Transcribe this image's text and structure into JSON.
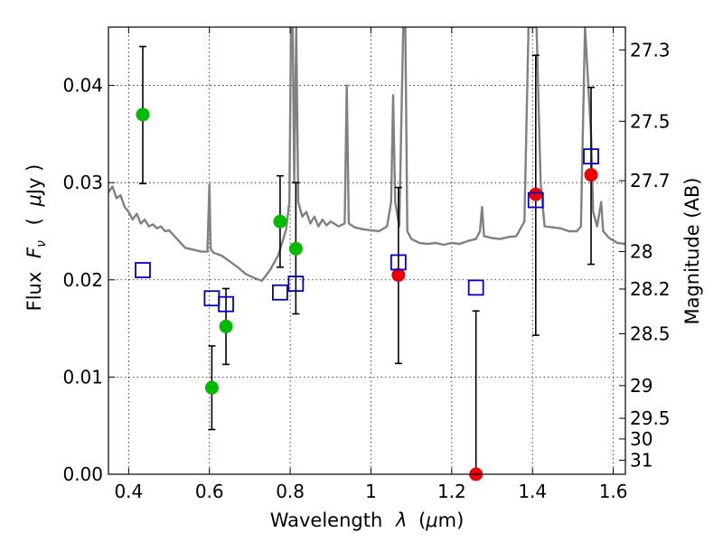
{
  "chart_data": {
    "type": "scatter",
    "xlabel_text": "Wavelength",
    "xlabel_symbol": "λ",
    "xlabel_unit_open": "(",
    "xlabel_unit_mu": "μ",
    "xlabel_unit_rest": "m)",
    "ylabel_text": "Flux",
    "ylabel_symbol": "F",
    "ylabel_sub": "ν",
    "ylabel_unit_open": "(",
    "ylabel_unit_mu": "μ",
    "ylabel_unit_rest": "Jy )",
    "y2label": "Magnitude (AB)",
    "xlim": [
      0.35,
      1.63
    ],
    "ylim": [
      0.0,
      0.046
    ],
    "x_ticks": [
      0.4,
      0.6,
      0.8,
      1.0,
      1.2,
      1.4,
      1.6
    ],
    "x_tick_labels": [
      "0.4",
      "0.6",
      "0.8",
      "1",
      "1.2",
      "1.4",
      "1.6"
    ],
    "y_ticks": [
      0.0,
      0.01,
      0.02,
      0.03,
      0.04
    ],
    "y_tick_labels": [
      "0.00",
      "0.01",
      "0.02",
      "0.03",
      "0.04"
    ],
    "mag_ticks": [
      27.3,
      27.5,
      27.7,
      28,
      28.2,
      28.5,
      29,
      29.5,
      30,
      31
    ],
    "mag_tick_labels": [
      "27.3",
      "27.5",
      "27.7",
      "28",
      "28.2",
      "28.5",
      "29",
      "29.5",
      "30",
      "31"
    ],
    "grid": true,
    "colors": {
      "spectrum": "#808080",
      "green": "#00bb00",
      "red": "#ee0000",
      "blue": "#0000cc",
      "errorbar": "#000000"
    },
    "series": [
      {
        "name": "green_points",
        "marker": "circle",
        "points": [
          {
            "x": 0.435,
            "y": 0.037,
            "yerr_low": 0.0299,
            "yerr_high": 0.044
          },
          {
            "x": 0.606,
            "y": 0.0089,
            "yerr_low": 0.0046,
            "yerr_high": 0.0132
          },
          {
            "x": 0.641,
            "y": 0.0152,
            "yerr_low": 0.0113,
            "yerr_high": 0.0191
          },
          {
            "x": 0.775,
            "y": 0.026,
            "yerr_low": 0.0213,
            "yerr_high": 0.0307
          },
          {
            "x": 0.814,
            "y": 0.0232,
            "yerr_low": 0.0165,
            "yerr_high": 0.03
          }
        ]
      },
      {
        "name": "red_points",
        "marker": "circle",
        "points": [
          {
            "x": 1.068,
            "y": 0.0205,
            "yerr_low": 0.0114,
            "yerr_high": 0.0295
          },
          {
            "x": 1.26,
            "y": 0.0,
            "yerr_low": 0.0,
            "yerr_high": 0.0168
          },
          {
            "x": 1.408,
            "y": 0.0288,
            "yerr_low": 0.0143,
            "yerr_high": 0.0431
          },
          {
            "x": 1.545,
            "y": 0.0308,
            "yerr_low": 0.0216,
            "yerr_high": 0.0398
          }
        ]
      },
      {
        "name": "model_squares",
        "marker": "square",
        "points": [
          {
            "x": 0.435,
            "y": 0.021
          },
          {
            "x": 0.606,
            "y": 0.0181
          },
          {
            "x": 0.641,
            "y": 0.0175
          },
          {
            "x": 0.775,
            "y": 0.0187
          },
          {
            "x": 0.814,
            "y": 0.0196
          },
          {
            "x": 1.068,
            "y": 0.0218
          },
          {
            "x": 1.26,
            "y": 0.0192
          },
          {
            "x": 1.408,
            "y": 0.0282
          },
          {
            "x": 1.545,
            "y": 0.0327
          }
        ]
      },
      {
        "name": "spectrum",
        "type": "line",
        "points": [
          [
            0.35,
            0.029
          ],
          [
            0.36,
            0.0296
          ],
          [
            0.37,
            0.0284
          ],
          [
            0.38,
            0.0287
          ],
          [
            0.39,
            0.0275
          ],
          [
            0.4,
            0.027
          ],
          [
            0.41,
            0.0262
          ],
          [
            0.42,
            0.0268
          ],
          [
            0.43,
            0.0258
          ],
          [
            0.44,
            0.0262
          ],
          [
            0.45,
            0.0255
          ],
          [
            0.46,
            0.0257
          ],
          [
            0.47,
            0.0253
          ],
          [
            0.48,
            0.0255
          ],
          [
            0.49,
            0.025
          ],
          [
            0.5,
            0.0251
          ],
          [
            0.52,
            0.0242
          ],
          [
            0.54,
            0.0233
          ],
          [
            0.56,
            0.0231
          ],
          [
            0.58,
            0.0229
          ],
          [
            0.595,
            0.0229
          ],
          [
            0.6,
            0.0298
          ],
          [
            0.603,
            0.0232
          ],
          [
            0.61,
            0.0228
          ],
          [
            0.63,
            0.0225
          ],
          [
            0.65,
            0.0219
          ],
          [
            0.67,
            0.0213
          ],
          [
            0.69,
            0.0206
          ],
          [
            0.71,
            0.0202
          ],
          [
            0.73,
            0.0199
          ],
          [
            0.75,
            0.021
          ],
          [
            0.77,
            0.0225
          ],
          [
            0.78,
            0.0238
          ],
          [
            0.79,
            0.0252
          ],
          [
            0.798,
            0.028
          ],
          [
            0.802,
            0.046
          ],
          [
            0.806,
            0.046
          ],
          [
            0.81,
            0.03
          ],
          [
            0.815,
            0.046
          ],
          [
            0.82,
            0.028
          ],
          [
            0.83,
            0.0265
          ],
          [
            0.84,
            0.027
          ],
          [
            0.85,
            0.0258
          ],
          [
            0.86,
            0.0265
          ],
          [
            0.87,
            0.0255
          ],
          [
            0.88,
            0.0262
          ],
          [
            0.89,
            0.0256
          ],
          [
            0.9,
            0.026
          ],
          [
            0.92,
            0.0255
          ],
          [
            0.935,
            0.0258
          ],
          [
            0.94,
            0.04
          ],
          [
            0.945,
            0.0258
          ],
          [
            0.96,
            0.0254
          ],
          [
            0.98,
            0.0252
          ],
          [
            1.0,
            0.0251
          ],
          [
            1.02,
            0.025
          ],
          [
            1.04,
            0.0255
          ],
          [
            1.05,
            0.028
          ],
          [
            1.055,
            0.039
          ],
          [
            1.06,
            0.028
          ],
          [
            1.07,
            0.0255
          ],
          [
            1.08,
            0.046
          ],
          [
            1.085,
            0.046
          ],
          [
            1.09,
            0.025
          ],
          [
            1.1,
            0.0242
          ],
          [
            1.12,
            0.0238
          ],
          [
            1.14,
            0.0237
          ],
          [
            1.16,
            0.0238
          ],
          [
            1.18,
            0.0236
          ],
          [
            1.2,
            0.0238
          ],
          [
            1.22,
            0.0237
          ],
          [
            1.24,
            0.024
          ],
          [
            1.26,
            0.0242
          ],
          [
            1.27,
            0.025
          ],
          [
            1.275,
            0.0275
          ],
          [
            1.28,
            0.0245
          ],
          [
            1.3,
            0.0243
          ],
          [
            1.32,
            0.0242
          ],
          [
            1.34,
            0.0244
          ],
          [
            1.36,
            0.0245
          ],
          [
            1.38,
            0.026
          ],
          [
            1.39,
            0.046
          ],
          [
            1.4,
            0.046
          ],
          [
            1.41,
            0.046
          ],
          [
            1.42,
            0.03
          ],
          [
            1.43,
            0.0255
          ],
          [
            1.45,
            0.0254
          ],
          [
            1.47,
            0.0253
          ],
          [
            1.49,
            0.025
          ],
          [
            1.51,
            0.025
          ],
          [
            1.52,
            0.0255
          ],
          [
            1.53,
            0.046
          ],
          [
            1.545,
            0.035
          ],
          [
            1.55,
            0.027
          ],
          [
            1.56,
            0.0255
          ],
          [
            1.57,
            0.028
          ],
          [
            1.575,
            0.025
          ],
          [
            1.59,
            0.0243
          ],
          [
            1.61,
            0.0238
          ],
          [
            1.63,
            0.0237
          ]
        ]
      }
    ]
  }
}
